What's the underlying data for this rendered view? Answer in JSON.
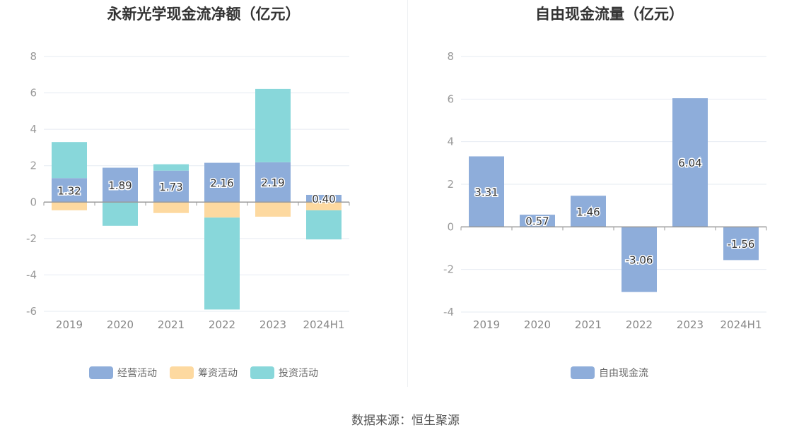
{
  "colors": {
    "operating": "#8eadda",
    "financing": "#fdd9a0",
    "investing": "#88d7da",
    "free_cash_flow": "#8eadda",
    "axis": "#999999",
    "grid": "#e6ebf2"
  },
  "source": "数据来源：恒生聚源",
  "chart_data": [
    {
      "type": "bar",
      "stacked": true,
      "title": "永新光学现金流净额（亿元）",
      "categories": [
        "2019",
        "2020",
        "2021",
        "2022",
        "2023",
        "2024H1"
      ],
      "ylim": [
        -6,
        8
      ],
      "yticks": [
        -6,
        -4,
        -2,
        0,
        2,
        4,
        6,
        8
      ],
      "grid": true,
      "legend_position": "bottom",
      "series": [
        {
          "name": "经营活动",
          "color_key": "operating",
          "values": [
            1.32,
            1.89,
            1.73,
            2.16,
            2.19,
            0.4
          ],
          "labeled": true
        },
        {
          "name": "筹资活动",
          "color_key": "financing",
          "values": [
            -0.45,
            0.0,
            -0.6,
            -0.85,
            -0.8,
            -0.45
          ],
          "labeled": false
        },
        {
          "name": "投资活动",
          "color_key": "investing",
          "values": [
            1.98,
            -1.3,
            0.35,
            -5.05,
            4.03,
            -1.6
          ],
          "labeled": false
        }
      ]
    },
    {
      "type": "bar",
      "title": "自由现金流量（亿元）",
      "categories": [
        "2019",
        "2020",
        "2021",
        "2022",
        "2023",
        "2024H1"
      ],
      "ylim": [
        -4,
        8
      ],
      "yticks": [
        -4,
        -2,
        0,
        2,
        4,
        6,
        8
      ],
      "grid": true,
      "legend_position": "bottom",
      "series": [
        {
          "name": "自由现金流",
          "color_key": "free_cash_flow",
          "values": [
            3.31,
            0.57,
            1.46,
            -3.06,
            6.04,
            -1.56
          ],
          "labeled": true
        }
      ]
    }
  ]
}
